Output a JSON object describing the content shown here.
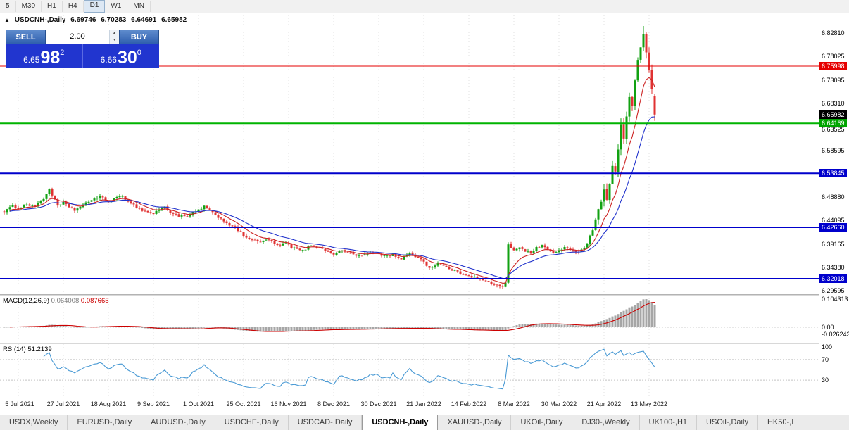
{
  "toolbar": {
    "timeframes": [
      "5",
      "M30",
      "H1",
      "H4",
      "D1",
      "W1",
      "MN"
    ],
    "active": "D1"
  },
  "icons": {
    "collapse": "▲",
    "spin_up": "▴",
    "spin_down": "▾"
  },
  "title": {
    "symbol": "USDCNH-,Daily",
    "open": "6.69746",
    "high": "6.70283",
    "low": "6.64691",
    "close": "6.65982"
  },
  "one_click": {
    "sell_label": "SELL",
    "buy_label": "BUY",
    "volume": "2.00",
    "sell_big_prefix": "6.65",
    "sell_big": "98",
    "sell_sup": "2",
    "buy_big_prefix": "6.66",
    "buy_big": "30",
    "buy_sup": "0"
  },
  "price_axis": {
    "ticks": [
      "6.82810",
      "6.78025",
      "6.73095",
      "6.68310",
      "6.63525",
      "6.58595",
      "6.48880",
      "6.44095",
      "6.39165",
      "6.34380",
      "6.29595"
    ],
    "current": {
      "label": "6.65982",
      "value": 6.65982,
      "bg": "#000000"
    },
    "line_labels": [
      {
        "label": "6.75998",
        "value": 6.75998,
        "bg": "#e60000"
      },
      {
        "label": "6.64169",
        "value": 6.64169,
        "bg": "#00a400"
      },
      {
        "label": "6.53845",
        "value": 6.53845,
        "bg": "#0000cc"
      },
      {
        "label": "6.42660",
        "value": 6.4266,
        "bg": "#0000cc"
      },
      {
        "label": "6.32018",
        "value": 6.32018,
        "bg": "#0000cc"
      }
    ]
  },
  "macd_panel": {
    "name": "MACD(12,26,9)",
    "value_main": "0.064008",
    "value_signal": "0.087665",
    "axis_top": "0.104313",
    "axis_zero": "0.00",
    "axis_bottom": "-0.026243"
  },
  "rsi_panel": {
    "name": "RSI(14)",
    "value": "51.2139",
    "axis": [
      100,
      70,
      30
    ],
    "levels": [
      70,
      30
    ]
  },
  "tabs": [
    "USDX,Weekly",
    "EURUSD-,Daily",
    "AUDUSD-,Daily",
    "USDCHF-,Daily",
    "USDCAD-,Daily",
    "USDCNH-,Daily",
    "XAUUSD-,Daily",
    "UKOil-,Daily",
    "DJ30-,Weekly",
    "UK100-,H1",
    "USOil-,Daily",
    "HK50-,I"
  ],
  "active_tab": "USDCNH-,Daily",
  "chart_data": {
    "type": "candlestick",
    "symbol": "USDCNH-",
    "timeframe": "Daily",
    "title": "USDCNH-,Daily",
    "ohlc_current": {
      "open": 6.69746,
      "high": 6.70283,
      "low": 6.64691,
      "close": 6.65982
    },
    "ylim": [
      6.2882,
      6.8707
    ],
    "x_labels": [
      "5 Jul 2021",
      "27 Jul 2021",
      "18 Aug 2021",
      "9 Sep 2021",
      "1 Oct 2021",
      "25 Oct 2021",
      "16 Nov 2021",
      "8 Dec 2021",
      "30 Dec 2021",
      "21 Jan 2022",
      "14 Feb 2022",
      "8 Mar 2022",
      "30 Mar 2022",
      "21 Apr 2022",
      "13 May 2022"
    ],
    "bars_per_label": 16,
    "first_label_bar": 5,
    "total_bars": 232,
    "grid": "vertical-dotted",
    "close_path_anchors": [
      [
        0,
        6.46
      ],
      [
        3,
        6.47
      ],
      [
        5,
        6.466
      ],
      [
        8,
        6.474
      ],
      [
        11,
        6.47
      ],
      [
        14,
        6.486
      ],
      [
        16,
        6.506
      ],
      [
        17,
        6.494
      ],
      [
        19,
        6.47
      ],
      [
        21,
        6.477
      ],
      [
        23,
        6.469
      ],
      [
        25,
        6.462
      ],
      [
        28,
        6.472
      ],
      [
        31,
        6.484
      ],
      [
        34,
        6.49
      ],
      [
        37,
        6.479
      ],
      [
        39,
        6.486
      ],
      [
        42,
        6.49
      ],
      [
        45,
        6.477
      ],
      [
        48,
        6.464
      ],
      [
        51,
        6.458
      ],
      [
        53,
        6.455
      ],
      [
        55,
        6.464
      ],
      [
        57,
        6.468
      ],
      [
        59,
        6.458
      ],
      [
        62,
        6.45
      ],
      [
        65,
        6.448
      ],
      [
        67,
        6.456
      ],
      [
        69,
        6.462
      ],
      [
        71,
        6.47
      ],
      [
        73,
        6.461
      ],
      [
        75,
        6.452
      ],
      [
        78,
        6.44
      ],
      [
        81,
        6.428
      ],
      [
        83,
        6.42
      ],
      [
        85,
        6.41
      ],
      [
        88,
        6.4
      ],
      [
        91,
        6.396
      ],
      [
        94,
        6.402
      ],
      [
        97,
        6.388
      ],
      [
        100,
        6.393
      ],
      [
        103,
        6.383
      ],
      [
        106,
        6.378
      ],
      [
        109,
        6.39
      ],
      [
        112,
        6.384
      ],
      [
        115,
        6.376
      ],
      [
        117,
        6.372
      ],
      [
        120,
        6.379
      ],
      [
        123,
        6.372
      ],
      [
        126,
        6.368
      ],
      [
        129,
        6.371
      ],
      [
        132,
        6.374
      ],
      [
        135,
        6.367
      ],
      [
        138,
        6.37
      ],
      [
        141,
        6.361
      ],
      [
        144,
        6.372
      ],
      [
        147,
        6.364
      ],
      [
        149,
        6.356
      ],
      [
        151,
        6.342
      ],
      [
        154,
        6.352
      ],
      [
        157,
        6.344
      ],
      [
        160,
        6.336
      ],
      [
        163,
        6.33
      ],
      [
        165,
        6.327
      ],
      [
        168,
        6.32
      ],
      [
        171,
        6.315
      ],
      [
        174,
        6.309
      ],
      [
        177,
        6.302
      ],
      [
        178,
        6.312
      ],
      [
        179,
        6.39
      ],
      [
        181,
        6.38
      ],
      [
        183,
        6.386
      ],
      [
        185,
        6.378
      ],
      [
        187,
        6.373
      ],
      [
        189,
        6.384
      ],
      [
        191,
        6.39
      ],
      [
        193,
        6.38
      ],
      [
        195,
        6.373
      ],
      [
        197,
        6.379
      ],
      [
        199,
        6.385
      ],
      [
        201,
        6.379
      ],
      [
        203,
        6.375
      ],
      [
        205,
        6.381
      ],
      [
        207,
        6.392
      ],
      [
        209,
        6.424
      ],
      [
        211,
        6.464
      ],
      [
        213,
        6.502
      ],
      [
        214,
        6.48
      ],
      [
        215,
        6.519
      ],
      [
        216,
        6.557
      ],
      [
        217,
        6.543
      ],
      [
        218,
        6.589
      ],
      [
        219,
        6.637
      ],
      [
        220,
        6.61
      ],
      [
        221,
        6.654
      ],
      [
        222,
        6.698
      ],
      [
        223,
        6.677
      ],
      [
        224,
        6.728
      ],
      [
        225,
        6.769
      ],
      [
        226,
        6.801
      ],
      [
        227,
        6.827
      ],
      [
        228,
        6.789
      ],
      [
        229,
        6.752
      ],
      [
        230,
        6.712
      ],
      [
        231,
        6.66
      ]
    ],
    "horizontal_lines": [
      {
        "value": 6.75998,
        "color": "#e60000",
        "width": 1
      },
      {
        "value": 6.64169,
        "color": "#00b400",
        "width": 2
      },
      {
        "value": 6.53845,
        "color": "#0000cc",
        "width": 2
      },
      {
        "value": 6.4266,
        "color": "#0000cc",
        "width": 2
      },
      {
        "value": 6.32018,
        "color": "#0000cc",
        "width": 2
      }
    ],
    "moving_averages": [
      {
        "type": "ema",
        "period": 9,
        "color": "#cc2222"
      },
      {
        "type": "ema",
        "period": 20,
        "color": "#2233cc"
      }
    ],
    "indicators": [
      {
        "name": "MACD",
        "params": [
          12,
          26,
          9
        ],
        "current_main": 0.064008,
        "current_signal": 0.087665,
        "colors": {
          "histogram": "#a6a6a6",
          "signal": "#cc0000"
        }
      },
      {
        "name": "RSI",
        "params": [
          14
        ],
        "current": 51.2139,
        "color": "#4899d4",
        "levels": [
          70,
          30
        ],
        "range": [
          0,
          100
        ]
      }
    ],
    "candle_colors": {
      "up": "#12a112",
      "down": "#e03232"
    }
  }
}
